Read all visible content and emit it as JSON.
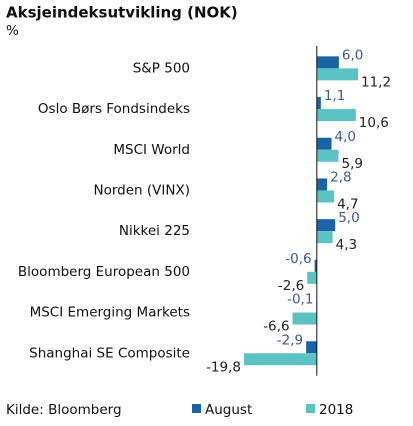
{
  "chart_data": {
    "type": "hbar",
    "title": "Aksjeindeksutvikling (NOK)",
    "subtitle": "%",
    "source": "Kilde: Bloomberg",
    "categories": [
      "S&P 500",
      "Oslo Børs Fondsindeks",
      "MSCI World",
      "Norden (VINX)",
      "Nikkei 225",
      "Bloomberg European 500",
      "MSCI Emerging Markets",
      "Shanghai SE Composite"
    ],
    "series": [
      {
        "name": "August",
        "color": "#1a64a6",
        "label_color": "#3b5a9a",
        "values": [
          6.0,
          1.1,
          4.0,
          2.8,
          5.0,
          -0.6,
          -0.1,
          -2.9
        ],
        "value_labels": [
          "6,0",
          "1,1",
          "4,0",
          "2,8",
          "5,0",
          "-0,6",
          "-0,1",
          "-2,9"
        ]
      },
      {
        "name": "2018",
        "color": "#5cc3c5",
        "label_color": "#222222",
        "values": [
          11.2,
          10.6,
          5.9,
          4.7,
          4.3,
          -2.6,
          -6.6,
          -19.8
        ],
        "value_labels": [
          "11,2",
          "10,6",
          "5,9",
          "4,7",
          "4,3",
          "-2,6",
          "-6,6",
          "-19,8"
        ]
      }
    ]
  }
}
